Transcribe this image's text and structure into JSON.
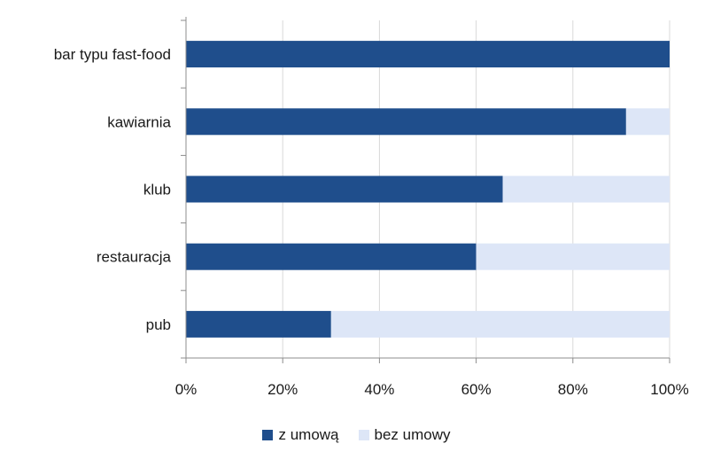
{
  "chart_data": {
    "type": "bar",
    "orientation": "horizontal",
    "stacked": true,
    "categories": [
      "bar typu fast-food",
      "kawiarnia",
      "klub",
      "restauracja",
      "pub"
    ],
    "series": [
      {
        "name": "z umową",
        "color": "#1f4e8c",
        "values": [
          100,
          91,
          65.5,
          60,
          30
        ]
      },
      {
        "name": "bez umowy",
        "color": "#dde6f7",
        "values": [
          0,
          9,
          34.5,
          40,
          70
        ]
      }
    ],
    "xlim": [
      0,
      100
    ],
    "xticks": [
      "0%",
      "20%",
      "40%",
      "60%",
      "80%",
      "100%"
    ],
    "title": "",
    "xlabel": "",
    "ylabel": "",
    "grid": true,
    "legend_position": "bottom"
  }
}
